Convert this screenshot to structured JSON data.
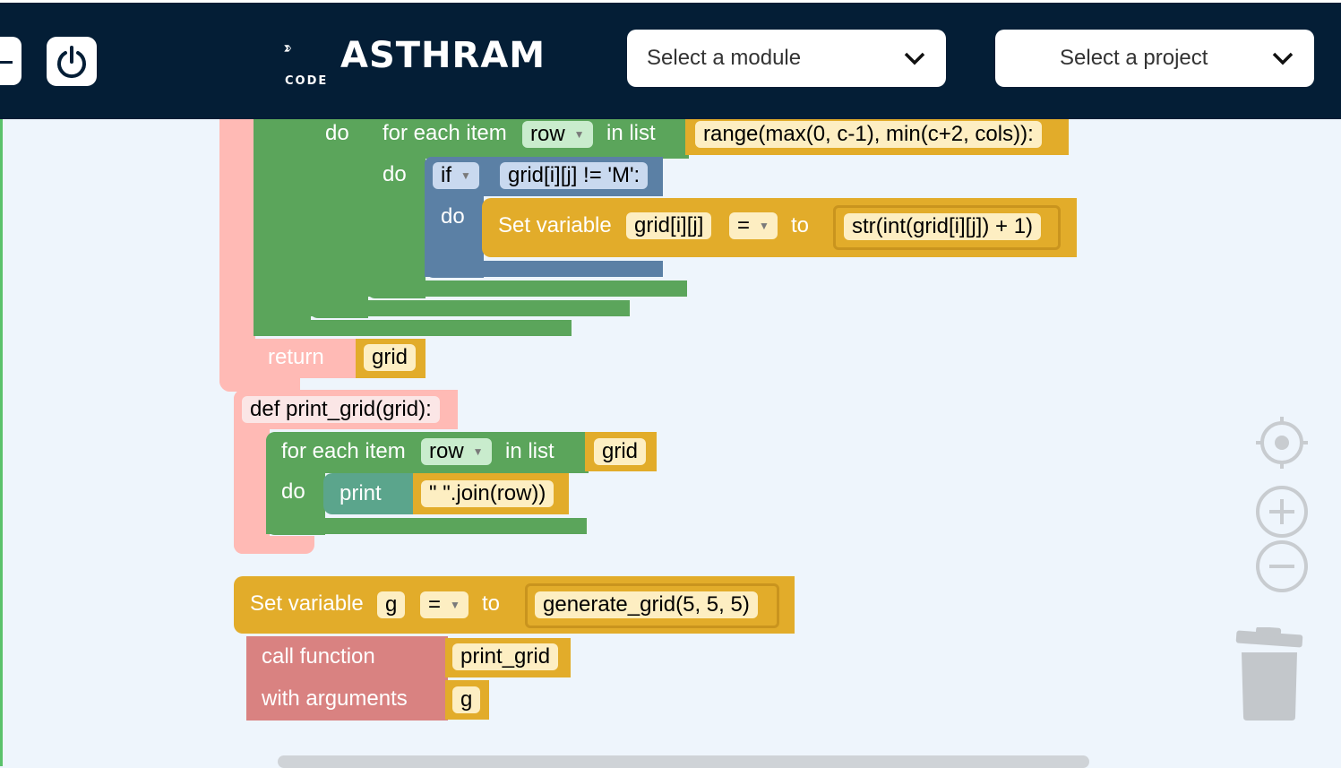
{
  "header": {
    "logo_text": "ASTHRAM",
    "logo_sub": "CODE",
    "module_select": "Select a module",
    "project_select": "Select a project"
  },
  "blocks": {
    "do_1": "do",
    "for_each_1_label": "for each item",
    "for_each_1_var": "row",
    "in_list_1": "in list",
    "range_expr": "range(max(0, c-1), min(c+2, cols)):",
    "do_2": "do",
    "if_label": "if",
    "if_cond": "grid[i][j] != 'M':",
    "do_3": "do",
    "set_var_1_label": "Set variable",
    "set_var_1_name": "grid[i][j]",
    "set_var_1_op": "=",
    "set_var_1_to": "to",
    "set_var_1_value": "str(int(grid[i][j]) + 1)",
    "return_label": "return",
    "return_value": "grid",
    "def_label": "def print_grid(grid):",
    "for_each_2_label": "for each item",
    "for_each_2_var": "row",
    "in_list_2": "in list",
    "for_each_2_list": "grid",
    "do_4": "do",
    "print_label": "print",
    "print_value": "\" \".join(row))",
    "set_var_2_label": "Set variable",
    "set_var_2_name": "g",
    "set_var_2_op": "=",
    "set_var_2_to": "to",
    "set_var_2_value": "generate_grid(5, 5, 5)",
    "call_label": "call function",
    "call_name": "print_grid",
    "args_label": "with arguments",
    "args_value": "g"
  },
  "colors": {
    "header_bg": "#041e36",
    "workspace_bg": "#eef5fc",
    "green": "#5ba55b",
    "gold": "#e2ac2a",
    "blue": "#5b80a5",
    "pink": "#ffbab5",
    "red": "#d98281",
    "teal": "#5ba58c"
  }
}
